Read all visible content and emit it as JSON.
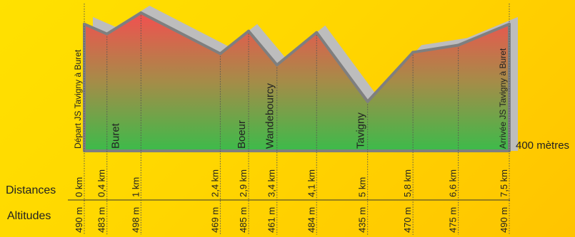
{
  "chart_data": {
    "type": "area",
    "title": "",
    "baseline_label": "400 mètres",
    "row_labels": {
      "distances": "Distances",
      "altitudes": "Altitudes"
    },
    "xlim": [
      0,
      7.5
    ],
    "ylim": [
      400,
      498
    ],
    "points": [
      {
        "x": 0,
        "distance": "0 km",
        "altitude_label": "490 m",
        "y": 490,
        "place": "Départ JS Tavigny à Buret",
        "place_pos": "left"
      },
      {
        "x": 0.4,
        "distance": "0,4 km",
        "altitude_label": "483 m",
        "y": 483,
        "place": "Buret",
        "place_pos": "right"
      },
      {
        "x": 1,
        "distance": "1 km",
        "altitude_label": "498 m",
        "y": 498,
        "place": "",
        "place_pos": ""
      },
      {
        "x": 2.4,
        "distance": "2,4 km",
        "altitude_label": "469 m",
        "y": 469,
        "place": "",
        "place_pos": ""
      },
      {
        "x": 2.9,
        "distance": "2,9 km",
        "altitude_label": "485 m",
        "y": 485,
        "place": "Boeur",
        "place_pos": "left"
      },
      {
        "x": 3.4,
        "distance": "3,4 km",
        "altitude_label": "461 m",
        "y": 461,
        "place": "Wandebourcy",
        "place_pos": "left"
      },
      {
        "x": 4.1,
        "distance": "4,1 km",
        "altitude_label": "484 m",
        "y": 484,
        "place": "",
        "place_pos": ""
      },
      {
        "x": 5,
        "distance": "5 km",
        "altitude_label": "435 m",
        "y": 435,
        "place": "Tavigny",
        "place_pos": "left"
      },
      {
        "x": 5.8,
        "distance": "5,8 km",
        "altitude_label": "470 m",
        "y": 470,
        "place": "",
        "place_pos": ""
      },
      {
        "x": 6.6,
        "distance": "6,6 km",
        "altitude_label": "475 m",
        "y": 475,
        "place": "",
        "place_pos": ""
      },
      {
        "x": 7.5,
        "distance": "7,5 km",
        "altitude_label": "490 m",
        "y": 490,
        "place": "Arrivée JS Tavigny à Buret",
        "place_pos": "left"
      }
    ],
    "colors": {
      "top": "#f25050",
      "bottom": "#3cbb4a",
      "outline": "#7f7f7f",
      "shadow": "#bdbdbd",
      "guide": "#555555"
    }
  }
}
